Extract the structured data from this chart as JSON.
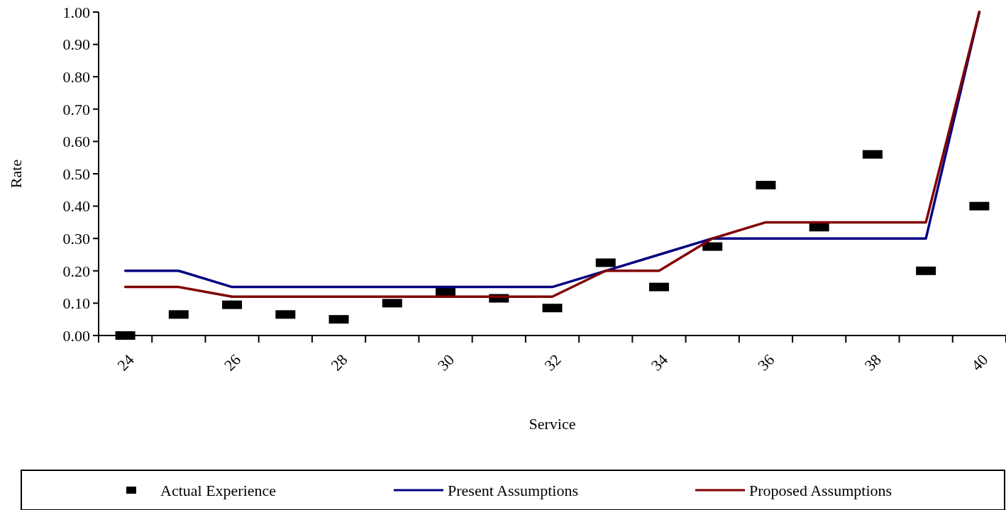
{
  "chart_data": {
    "type": "line",
    "xlabel": "Service",
    "ylabel": "Rate",
    "categories": [
      "24",
      null,
      "26",
      null,
      "28",
      null,
      "30",
      null,
      "32",
      null,
      "34",
      null,
      "36",
      null,
      "38",
      null,
      "40"
    ],
    "series": [
      {
        "name": "Actual Experience",
        "type": "scatter",
        "color": "#000000",
        "values": [
          0.0,
          0.065,
          0.095,
          0.065,
          0.05,
          0.1,
          0.135,
          0.115,
          0.085,
          0.225,
          0.15,
          0.275,
          0.465,
          0.335,
          0.56,
          0.2,
          0.4
        ]
      },
      {
        "name": "Present Assumptions",
        "color": "#000080",
        "values": [
          0.2,
          0.2,
          0.15,
          0.15,
          0.15,
          0.15,
          0.15,
          0.15,
          0.15,
          0.2,
          0.25,
          0.3,
          0.3,
          0.3,
          0.3,
          0.3,
          1.0
        ]
      },
      {
        "name": "Proposed Assumptions",
        "color": "#800000",
        "values": [
          0.15,
          0.15,
          0.12,
          0.12,
          0.12,
          0.12,
          0.12,
          0.12,
          0.12,
          0.2,
          0.2,
          0.3,
          0.35,
          0.35,
          0.35,
          0.35,
          1.0
        ]
      }
    ],
    "ylim": [
      0,
      1
    ],
    "yticks": [
      {
        "value": 0,
        "label": "0.00"
      },
      {
        "value": 0.1,
        "label": "0.10"
      },
      {
        "value": 0.2,
        "label": "0.20"
      },
      {
        "value": 0.3,
        "label": "0.30"
      },
      {
        "value": 0.4,
        "label": "0.40"
      },
      {
        "value": 0.5,
        "label": "0.50"
      },
      {
        "value": 0.6,
        "label": "0.60"
      },
      {
        "value": 0.7,
        "label": "0.70"
      },
      {
        "value": 0.8,
        "label": "0.80"
      },
      {
        "value": 0.9,
        "label": "0.90"
      },
      {
        "value": 1,
        "label": "1.00"
      }
    ],
    "grid": false,
    "legend": "bottom"
  }
}
